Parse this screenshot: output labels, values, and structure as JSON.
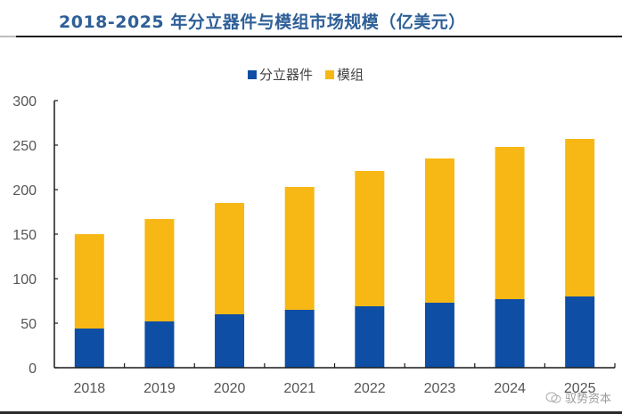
{
  "header": {
    "title": "2018-2025 年分立器件与模组市场规模（亿美元）"
  },
  "watermark": {
    "icon": "wechat-icon",
    "text": "驭势资本"
  },
  "colors": {
    "title": "#2e5f97",
    "discrete": "#0e4ea5",
    "module": "#f7b815",
    "axis": "#1a1a1a",
    "tick_text": "#555555"
  },
  "chart_data": {
    "type": "bar",
    "stacked": true,
    "title": "2018-2025 年分立器件与模组市场规模（亿美元）",
    "xlabel": "",
    "ylabel": "",
    "categories": [
      "2018",
      "2019",
      "2020",
      "2021",
      "2022",
      "2023",
      "2024",
      "2025"
    ],
    "series": [
      {
        "name": "分立器件",
        "color": "#0e4ea5",
        "values": [
          44,
          52,
          60,
          65,
          69,
          73,
          77,
          80
        ]
      },
      {
        "name": "模组",
        "color": "#f7b815",
        "values": [
          106,
          115,
          125,
          138,
          152,
          162,
          171,
          177
        ]
      }
    ],
    "ylim": [
      0,
      300
    ],
    "yticks": [
      0,
      50,
      100,
      150,
      200,
      250,
      300
    ],
    "grid": false,
    "legend_position": "top-center"
  }
}
